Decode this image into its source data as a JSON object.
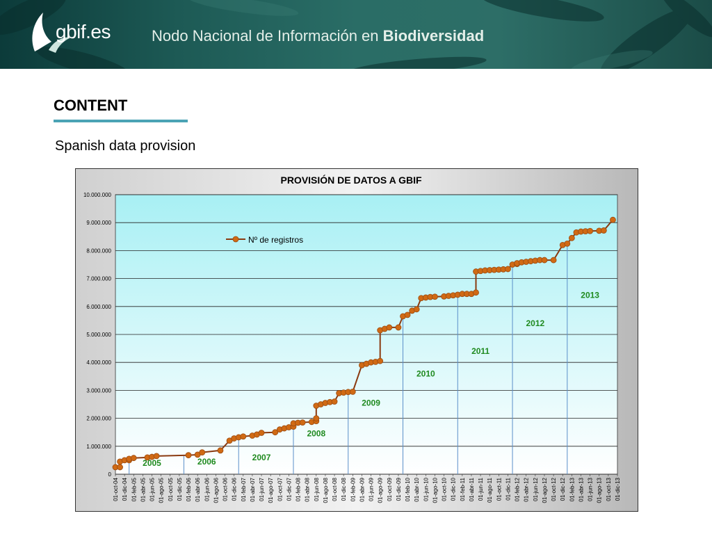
{
  "header": {
    "logo_text": "gbif.es",
    "title_prefix": "Nodo Nacional de Información en ",
    "title_strong": "Biodiversidad"
  },
  "section": {
    "title": "CONTENT",
    "subtitle": "Spanish data provision"
  },
  "colors": {
    "series": "#d06a14",
    "series_line": "#8a3a10",
    "year_label": "#1f8a1f",
    "accent_rule": "#4ba3b5"
  },
  "chart_data": {
    "type": "line",
    "title": "PROVISIÓN  DE DATOS A GBIF",
    "legend": {
      "position": "top-left",
      "label": "Nº de registros"
    },
    "ylim": [
      0,
      10000000
    ],
    "yticks": [
      {
        "value": 0,
        "label": "0"
      },
      {
        "value": 1000000,
        "label": "1.000.000"
      },
      {
        "value": 2000000,
        "label": "2.000.000"
      },
      {
        "value": 3000000,
        "label": "3.000.000"
      },
      {
        "value": 4000000,
        "label": "4.000.000"
      },
      {
        "value": 5000000,
        "label": "5.000.000"
      },
      {
        "value": 6000000,
        "label": "6.000.000"
      },
      {
        "value": 7000000,
        "label": "7.000.000"
      },
      {
        "value": 8000000,
        "label": "8.000.000"
      },
      {
        "value": 9000000,
        "label": "9.000.000"
      },
      {
        "value": 10000000,
        "label": "10.000.000"
      }
    ],
    "x_start": "2004-10",
    "x_end": "2013-12",
    "xticks": [
      "01-oct-04",
      "01-dic-04",
      "01-feb-05",
      "01-abr-05",
      "01-jun-05",
      "01-ago-05",
      "01-oct-05",
      "01-dic-05",
      "01-feb-06",
      "01-abr-06",
      "01-jun-06",
      "01-ago-06",
      "01-oct-06",
      "01-dic-06",
      "01-feb-07",
      "01-abr-07",
      "01-jun-07",
      "01-ago-07",
      "01-oct-07",
      "01-dic-07",
      "01-feb-08",
      "01-abr-08",
      "01-jun-08",
      "01-ago-08",
      "01-oct-08",
      "01-dic-08",
      "01-feb-09",
      "01-abr-09",
      "01-jun-09",
      "01-ago-09",
      "01-oct-09",
      "01-dic-09",
      "01-feb-10",
      "01-abr-10",
      "01-jun-10",
      "01-ago-10",
      "01-oct-10",
      "01-dic-10",
      "01-feb-11",
      "01-abr-11",
      "01-jun-11",
      "01-ago-11",
      "01-oct-11",
      "01-dic-11",
      "01-feb-12",
      "01-abr-12",
      "01-jun-12",
      "01-ago-12",
      "01-oct-12",
      "01-dic-12",
      "01-feb-13",
      "01-abr-13",
      "01-jun-13",
      "01-ago-13",
      "01-oct-13",
      "01-dic-13"
    ],
    "year_boundaries": [
      "2005-01",
      "2006-01",
      "2007-01",
      "2008-01",
      "2009-01",
      "2010-01",
      "2011-01",
      "2012-01",
      "2013-01"
    ],
    "year_labels": [
      {
        "text": "2005",
        "x": "2005-06",
        "y": 300000
      },
      {
        "text": "2006",
        "x": "2006-06",
        "y": 350000
      },
      {
        "text": "2007",
        "x": "2007-06",
        "y": 500000
      },
      {
        "text": "2008",
        "x": "2008-06",
        "y": 1350000
      },
      {
        "text": "2009",
        "x": "2009-06",
        "y": 2450000
      },
      {
        "text": "2010",
        "x": "2010-06",
        "y": 3500000
      },
      {
        "text": "2011",
        "x": "2011-06",
        "y": 4300000
      },
      {
        "text": "2012",
        "x": "2012-06",
        "y": 5300000
      },
      {
        "text": "2013",
        "x": "2013-06",
        "y": 6300000
      }
    ],
    "series": [
      {
        "name": "Nº de registros",
        "x": [
          "2004-10",
          "2004-11",
          "2004-11",
          "2004-12",
          "2005-01",
          "2005-01",
          "2005-02",
          "2005-05",
          "2005-06",
          "2005-07",
          "2006-02",
          "2006-04",
          "2006-05",
          "2006-09",
          "2006-11",
          "2006-12",
          "2007-01",
          "2007-02",
          "2007-04",
          "2007-05",
          "2007-06",
          "2007-09",
          "2007-10",
          "2007-11",
          "2007-12",
          "2008-01",
          "2008-01",
          "2008-02",
          "2008-03",
          "2008-05",
          "2008-06",
          "2008-06",
          "2008-06",
          "2008-07",
          "2008-08",
          "2008-09",
          "2008-10",
          "2008-11",
          "2008-12",
          "2009-01",
          "2009-02",
          "2009-04",
          "2009-05",
          "2009-06",
          "2009-07",
          "2009-08",
          "2009-08",
          "2009-09",
          "2009-10",
          "2009-12",
          "2010-01",
          "2010-02",
          "2010-03",
          "2010-04",
          "2010-05",
          "2010-06",
          "2010-07",
          "2010-08",
          "2010-10",
          "2010-11",
          "2010-12",
          "2011-01",
          "2011-02",
          "2011-03",
          "2011-04",
          "2011-05",
          "2011-05",
          "2011-06",
          "2011-07",
          "2011-08",
          "2011-09",
          "2011-10",
          "2011-11",
          "2011-12",
          "2012-01",
          "2012-02",
          "2012-02",
          "2012-03",
          "2012-04",
          "2012-05",
          "2012-06",
          "2012-07",
          "2012-08",
          "2012-10",
          "2012-12",
          "2013-01",
          "2013-02",
          "2013-03",
          "2013-04",
          "2013-05",
          "2013-06",
          "2013-08",
          "2013-09",
          "2013-11"
        ],
        "values": [
          250000,
          250000,
          450000,
          500000,
          500000,
          550000,
          580000,
          600000,
          620000,
          650000,
          680000,
          700000,
          780000,
          850000,
          1200000,
          1280000,
          1320000,
          1350000,
          1380000,
          1420000,
          1480000,
          1500000,
          1600000,
          1640000,
          1680000,
          1700000,
          1820000,
          1840000,
          1850000,
          1870000,
          1900000,
          2000000,
          2450000,
          2500000,
          2550000,
          2580000,
          2600000,
          2900000,
          2920000,
          2940000,
          2950000,
          3900000,
          3950000,
          4000000,
          4020000,
          4050000,
          5150000,
          5200000,
          5250000,
          5250000,
          5650000,
          5700000,
          5850000,
          5900000,
          6300000,
          6320000,
          6340000,
          6350000,
          6360000,
          6380000,
          6400000,
          6420000,
          6450000,
          6450000,
          6450000,
          6500000,
          7250000,
          7270000,
          7290000,
          7300000,
          7310000,
          7320000,
          7330000,
          7340000,
          7500000,
          7520000,
          7550000,
          7580000,
          7600000,
          7620000,
          7640000,
          7660000,
          7660000,
          7660000,
          8200000,
          8250000,
          8450000,
          8650000,
          8680000,
          8690000,
          8700000,
          8710000,
          8720000,
          9100000
        ]
      }
    ]
  }
}
